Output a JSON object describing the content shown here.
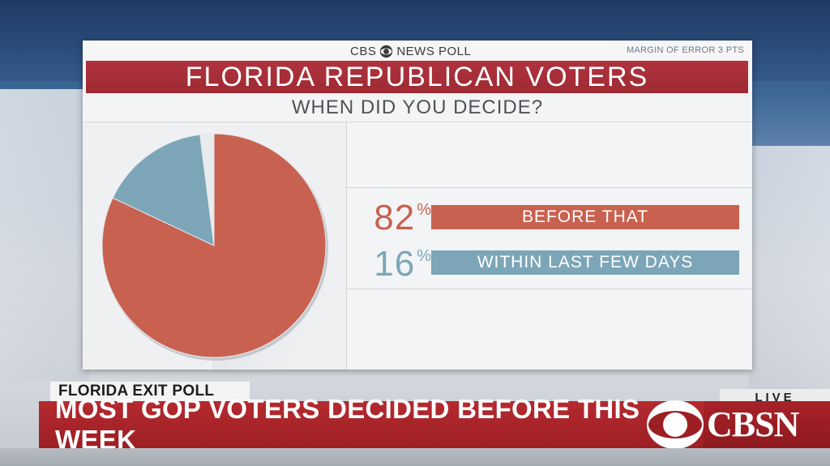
{
  "header": {
    "brand": "CBS NEWS POLL",
    "margin_of_error": "MARGIN OF ERROR 3 PTS"
  },
  "chart_data": {
    "type": "pie",
    "title": "FLORIDA REPUBLICAN VOTERS",
    "subtitle": "WHEN DID YOU DECIDE?",
    "slices": [
      {
        "label": "BEFORE THAT",
        "value": 82,
        "display": "82",
        "color": "#c8614f"
      },
      {
        "label": "WITHIN LAST FEW DAYS",
        "value": 16,
        "display": "16",
        "color": "#7ca6b8"
      }
    ],
    "remainder_color": "#e9ecef",
    "unit": "%"
  },
  "lower_third": {
    "label": "FLORIDA EXIT POLL",
    "headline": "MOST GOP VOTERS DECIDED BEFORE THIS WEEK",
    "live": "LIVE",
    "network": "CBSN"
  },
  "icons": [
    "cbs-eye-icon",
    "cbsn-logo-icon"
  ]
}
